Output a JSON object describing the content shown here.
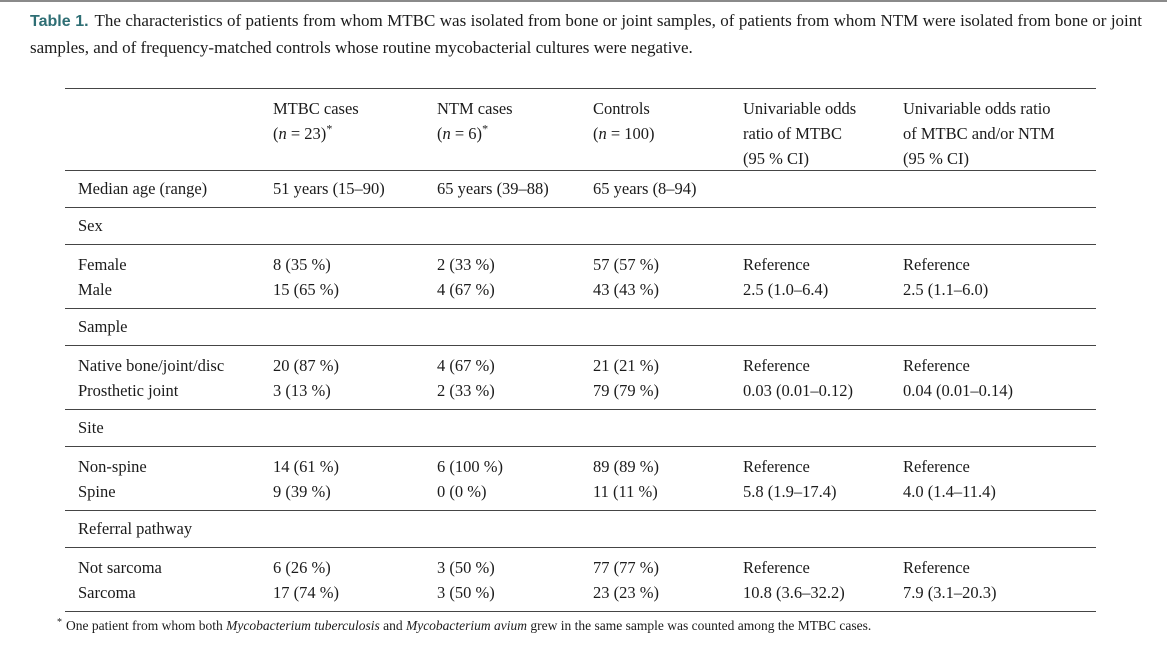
{
  "caption": {
    "label": "Table 1.",
    "text": "The characteristics of patients from whom MTBC was isolated from bone or joint samples, of patients from whom NTM were isolated from bone or joint samples, and of frequency-matched controls whose routine mycobacterial cultures were negative."
  },
  "table": {
    "header": {
      "sup": "*",
      "mtbc": {
        "line1": "MTBC cases",
        "paren": "(",
        "nvar": "n",
        "rest": " = 23)"
      },
      "ntm": {
        "line1": "NTM cases",
        "paren": "(",
        "nvar": "n",
        "rest": " = 6)"
      },
      "controls": {
        "line1": "Controls",
        "paren": "(",
        "nvar": "n",
        "rest": " = 100)"
      },
      "or_mtbc": {
        "line1": "Univariable odds",
        "line2": "ratio of MTBC",
        "line3": "(95 % CI)"
      },
      "or_both": {
        "line1": "Univariable odds ratio",
        "line2": "of MTBC and/or NTM",
        "line3": "(95 % CI)"
      }
    },
    "sections": [
      {
        "header": "",
        "rows": [
          {
            "label": "Median age (range)",
            "cells": [
              "51 years (15–90)",
              "65 years (39–88)",
              "65 years (8–94)",
              "",
              ""
            ]
          }
        ]
      },
      {
        "header": "Sex",
        "rows": [
          {
            "label": "Female",
            "cells": [
              "8 (35 %)",
              "2 (33 %)",
              "57 (57 %)",
              "Reference",
              "Reference"
            ]
          },
          {
            "label": "Male",
            "cells": [
              "15 (65 %)",
              "4 (67 %)",
              "43 (43 %)",
              "2.5 (1.0–6.4)",
              "2.5 (1.1–6.0)"
            ]
          }
        ]
      },
      {
        "header": "Sample",
        "rows": [
          {
            "label": "Native bone/joint/disc",
            "cells": [
              "20 (87 %)",
              "4 (67 %)",
              "21 (21 %)",
              "Reference",
              "Reference"
            ]
          },
          {
            "label": "Prosthetic joint",
            "cells": [
              "3 (13 %)",
              "2 (33 %)",
              "79 (79 %)",
              "0.03 (0.01–0.12)",
              "0.04 (0.01–0.14)"
            ]
          }
        ]
      },
      {
        "header": "Site",
        "rows": [
          {
            "label": "Non-spine",
            "cells": [
              "14 (61 %)",
              "6 (100 %)",
              "89 (89 %)",
              "Reference",
              "Reference"
            ]
          },
          {
            "label": "Spine",
            "cells": [
              "9 (39 %)",
              "0 (0 %)",
              "11 (11 %)",
              "5.8 (1.9–17.4)",
              "4.0 (1.4–11.4)"
            ]
          }
        ]
      },
      {
        "header": "Referral pathway",
        "rows": [
          {
            "label": "Not sarcoma",
            "cells": [
              "6 (26 %)",
              "3 (50 %)",
              "77 (77 %)",
              "Reference",
              "Reference"
            ]
          },
          {
            "label": "Sarcoma",
            "cells": [
              "17 (74 %)",
              "3 (50 %)",
              "23 (23 %)",
              "10.8 (3.6–32.2)",
              "7.9 (3.1–20.3)"
            ]
          }
        ]
      }
    ]
  },
  "footnote": {
    "marker": "*",
    "p1": "One patient from whom both ",
    "p2": "Mycobacterium tuberculosis",
    "p3": " and ",
    "p4": "Mycobacterium avium",
    "p5": " grew in the same sample was counted among the MTBC cases."
  }
}
